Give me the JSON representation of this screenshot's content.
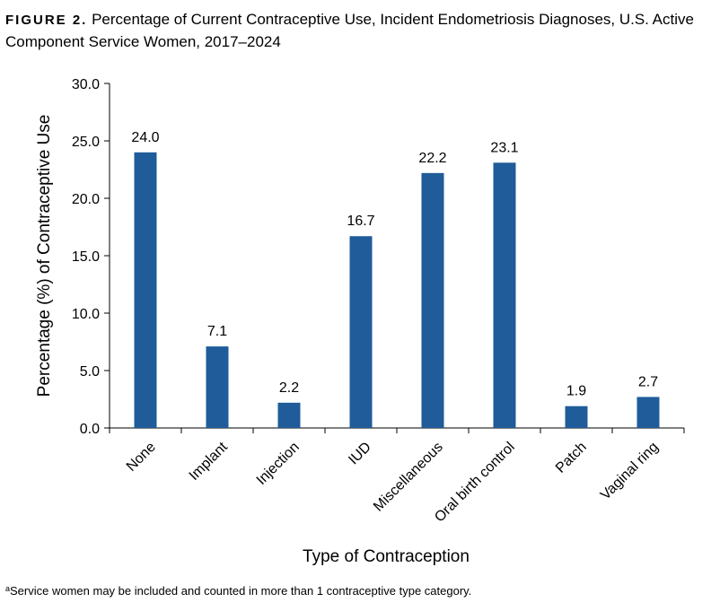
{
  "figure": {
    "label": "FIGURE 2.",
    "title": "Percentage of Current Contraceptive Use, Incident Endometriosis Diagnoses, U.S. Active Component Service Women, 2017–2024"
  },
  "footnote": {
    "marker": "a",
    "text": "Service women may be included and counted in more than 1 contraceptive type category."
  },
  "chart_data": {
    "type": "bar",
    "categories": [
      "None",
      "Implant",
      "Injection",
      "IUD",
      "Miscellaneous",
      "Oral birth control",
      "Patch",
      "Vaginal ring"
    ],
    "values": [
      24.0,
      7.1,
      2.2,
      16.7,
      22.2,
      23.1,
      1.9,
      2.7
    ],
    "data_labels": [
      "24.0",
      "7.1",
      "2.2",
      "16.7",
      "22.2",
      "23.1",
      "1.9",
      "2.7"
    ],
    "xlabel": "Type of Contraception",
    "ylabel": "Percentage (%) of Contraceptive Use",
    "ylim": [
      0,
      30
    ],
    "yticks": [
      0,
      5,
      10,
      15,
      20,
      25,
      30
    ],
    "ytick_labels": [
      "0.0",
      "5.0",
      "10.0",
      "15.0",
      "20.0",
      "25.0",
      "30.0"
    ],
    "bar_color": "#1f5c99",
    "grid": false,
    "legend": "none"
  }
}
